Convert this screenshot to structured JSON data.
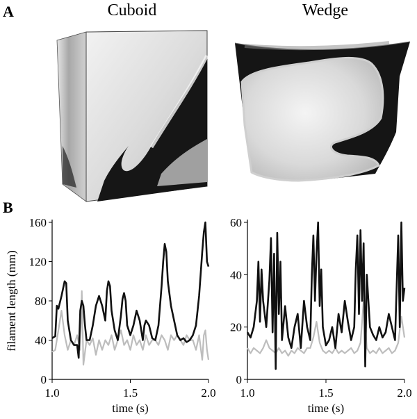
{
  "panel_a": {
    "letter": "A",
    "left_title": "Cuboid",
    "right_title": "Wedge"
  },
  "panel_b": {
    "letter": "B"
  },
  "chart_data": [
    {
      "type": "line",
      "title": "",
      "xlabel": "time (s)",
      "ylabel": "filament length (mm)",
      "xlim": [
        1.0,
        2.0
      ],
      "ylim": [
        0,
        160
      ],
      "xticks": [
        "1.0",
        "1.5",
        "2.0"
      ],
      "yticks": [
        "0",
        "40",
        "80",
        "120",
        "160"
      ],
      "colors": {
        "black_series": "#111111",
        "gray_series": "#bdbdbd"
      },
      "series": [
        {
          "style": "black",
          "x": [
            1.0,
            1.02,
            1.03,
            1.04,
            1.06,
            1.08,
            1.09,
            1.1,
            1.12,
            1.14,
            1.16,
            1.17,
            1.18,
            1.19,
            1.2,
            1.21,
            1.22,
            1.24,
            1.26,
            1.28,
            1.3,
            1.32,
            1.34,
            1.35,
            1.36,
            1.37,
            1.38,
            1.4,
            1.42,
            1.44,
            1.45,
            1.46,
            1.47,
            1.48,
            1.5,
            1.52,
            1.54,
            1.56,
            1.58,
            1.59,
            1.6,
            1.62,
            1.64,
            1.66,
            1.68,
            1.7,
            1.71,
            1.72,
            1.73,
            1.74,
            1.76,
            1.78,
            1.8,
            1.82,
            1.84,
            1.86,
            1.88,
            1.9,
            1.92,
            1.94,
            1.96,
            1.97,
            1.98,
            1.99,
            2.0
          ],
          "y": [
            42,
            44,
            75,
            72,
            85,
            100,
            98,
            60,
            40,
            35,
            35,
            22,
            70,
            80,
            75,
            55,
            40,
            40,
            55,
            75,
            85,
            75,
            60,
            90,
            100,
            95,
            70,
            50,
            40,
            65,
            82,
            88,
            80,
            55,
            45,
            55,
            70,
            60,
            40,
            55,
            60,
            55,
            42,
            40,
            55,
            95,
            120,
            138,
            130,
            100,
            75,
            60,
            45,
            40,
            42,
            38,
            40,
            45,
            55,
            85,
            130,
            150,
            160,
            120,
            115
          ]
        },
        {
          "style": "gray",
          "x": [
            1.0,
            1.02,
            1.04,
            1.06,
            1.08,
            1.1,
            1.12,
            1.14,
            1.16,
            1.18,
            1.19,
            1.2,
            1.22,
            1.24,
            1.26,
            1.28,
            1.3,
            1.32,
            1.34,
            1.36,
            1.38,
            1.4,
            1.42,
            1.44,
            1.46,
            1.48,
            1.5,
            1.52,
            1.54,
            1.56,
            1.58,
            1.6,
            1.62,
            1.64,
            1.66,
            1.68,
            1.7,
            1.72,
            1.74,
            1.76,
            1.78,
            1.8,
            1.82,
            1.84,
            1.86,
            1.88,
            1.9,
            1.92,
            1.94,
            1.96,
            1.97,
            1.98,
            1.99,
            2.0
          ],
          "y": [
            28,
            30,
            50,
            70,
            45,
            30,
            40,
            35,
            45,
            30,
            90,
            15,
            40,
            35,
            42,
            25,
            40,
            30,
            40,
            35,
            45,
            30,
            40,
            50,
            35,
            40,
            30,
            45,
            35,
            40,
            30,
            45,
            35,
            40,
            40,
            35,
            45,
            40,
            30,
            45,
            40,
            45,
            40,
            35,
            45,
            40,
            40,
            30,
            45,
            20,
            45,
            50,
            30,
            20
          ]
        }
      ]
    },
    {
      "type": "line",
      "title": "",
      "xlabel": "time (s)",
      "ylabel": "",
      "xlim": [
        1.0,
        2.0
      ],
      "ylim": [
        0,
        60
      ],
      "xticks": [
        "1.0",
        "1.5",
        "2.0"
      ],
      "yticks": [
        "0",
        "20",
        "40",
        "60"
      ],
      "colors": {
        "black_series": "#111111",
        "gray_series": "#bdbdbd"
      },
      "series": [
        {
          "style": "black",
          "x": [
            1.0,
            1.02,
            1.04,
            1.06,
            1.07,
            1.08,
            1.09,
            1.1,
            1.12,
            1.14,
            1.15,
            1.16,
            1.17,
            1.18,
            1.19,
            1.2,
            1.21,
            1.22,
            1.24,
            1.26,
            1.28,
            1.3,
            1.32,
            1.34,
            1.36,
            1.38,
            1.4,
            1.41,
            1.42,
            1.43,
            1.44,
            1.45,
            1.46,
            1.47,
            1.48,
            1.5,
            1.52,
            1.54,
            1.56,
            1.58,
            1.6,
            1.62,
            1.64,
            1.66,
            1.68,
            1.69,
            1.7,
            1.71,
            1.72,
            1.73,
            1.74,
            1.75,
            1.76,
            1.78,
            1.8,
            1.82,
            1.84,
            1.86,
            1.88,
            1.9,
            1.92,
            1.94,
            1.96,
            1.97,
            1.98,
            1.99,
            2.0
          ],
          "y": [
            18,
            16,
            20,
            30,
            45,
            22,
            42,
            30,
            20,
            38,
            54,
            18,
            48,
            4,
            56,
            25,
            45,
            15,
            28,
            16,
            12,
            20,
            25,
            12,
            30,
            20,
            15,
            40,
            55,
            30,
            48,
            60,
            28,
            42,
            20,
            13,
            15,
            20,
            12,
            25,
            18,
            30,
            22,
            15,
            20,
            42,
            55,
            25,
            57,
            30,
            52,
            5,
            40,
            20,
            17,
            15,
            20,
            16,
            18,
            25,
            20,
            15,
            55,
            20,
            60,
            30,
            35
          ]
        },
        {
          "style": "gray",
          "x": [
            1.0,
            1.02,
            1.04,
            1.06,
            1.08,
            1.1,
            1.12,
            1.14,
            1.16,
            1.18,
            1.2,
            1.22,
            1.24,
            1.26,
            1.28,
            1.3,
            1.32,
            1.34,
            1.36,
            1.38,
            1.4,
            1.42,
            1.44,
            1.46,
            1.48,
            1.5,
            1.52,
            1.54,
            1.56,
            1.58,
            1.6,
            1.62,
            1.64,
            1.66,
            1.68,
            1.7,
            1.72,
            1.74,
            1.76,
            1.78,
            1.8,
            1.82,
            1.84,
            1.86,
            1.88,
            1.9,
            1.92,
            1.94,
            1.96,
            1.98,
            2.0
          ],
          "y": [
            12,
            10,
            12,
            11,
            10,
            12,
            15,
            12,
            11,
            10,
            12,
            10,
            11,
            9,
            11,
            10,
            12,
            11,
            10,
            12,
            12,
            16,
            22,
            14,
            11,
            10,
            11,
            10,
            12,
            10,
            11,
            10,
            11,
            12,
            10,
            11,
            14,
            30,
            12,
            10,
            11,
            10,
            12,
            10,
            11,
            12,
            10,
            11,
            14,
            24,
            16
          ]
        }
      ]
    }
  ]
}
